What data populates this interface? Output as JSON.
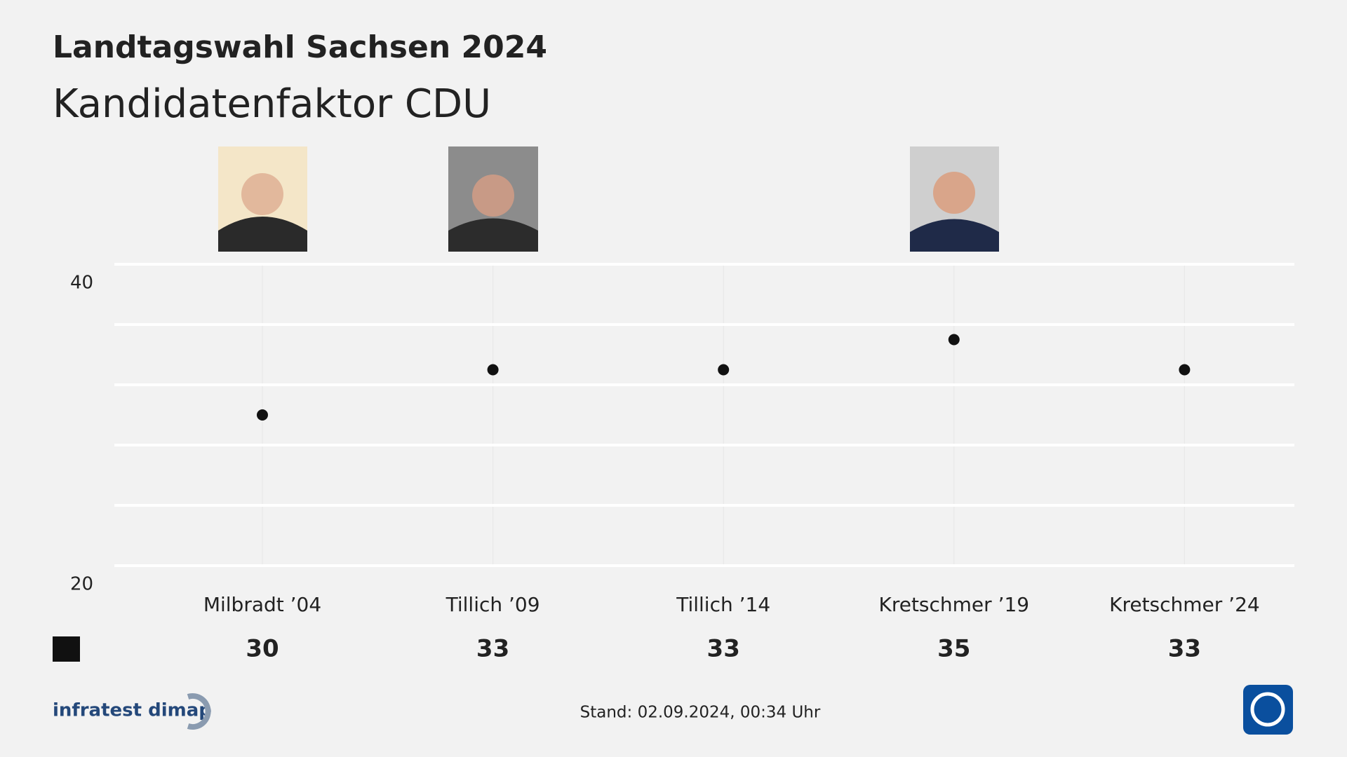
{
  "chart_data": {
    "type": "line",
    "title": "Landtagswahl Sachsen 2024",
    "subtitle": "Kandidatenfaktor CDU",
    "categories": [
      "Milbradt ’04",
      "Tillich ’09",
      "Tillich ’14",
      "Kretschmer ’19",
      "Kretschmer ’24"
    ],
    "series": [
      {
        "color": "#111111",
        "values": [
          30,
          33,
          33,
          35,
          33
        ]
      }
    ],
    "ylim": [
      20,
      40
    ],
    "yticks": [
      20,
      40
    ],
    "minor_yticks": [
      24,
      28,
      32,
      36
    ],
    "grid": true,
    "source": "infratest dimap",
    "footer": "Stand:  02.09.2024, 00:34 Uhr"
  }
}
